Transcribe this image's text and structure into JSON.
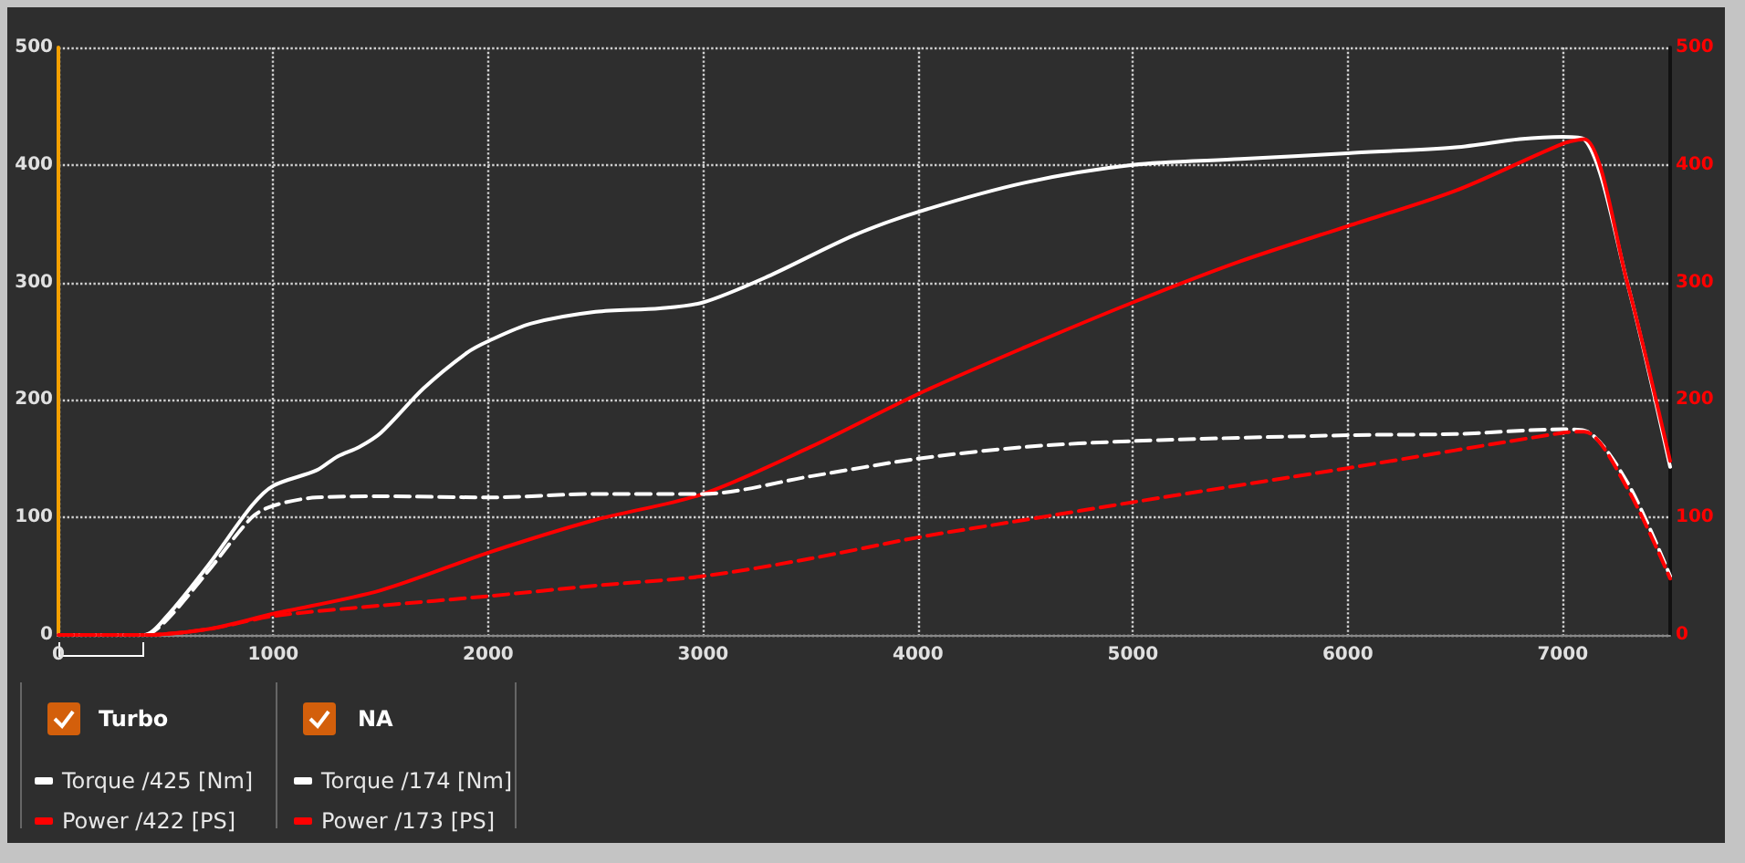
{
  "chart_data": {
    "type": "line",
    "xlim": [
      0,
      7500
    ],
    "xticks": [
      0,
      1000,
      2000,
      3000,
      4000,
      5000,
      6000,
      7000
    ],
    "ylim": [
      0,
      500
    ],
    "yticks": [
      0,
      100,
      200,
      300,
      400,
      500
    ],
    "y2lim": [
      0,
      500
    ],
    "y2ticks": [
      0,
      100,
      200,
      300,
      400,
      500
    ],
    "grid": true,
    "legend": "bottom left",
    "marker": "none",
    "annotations": [
      "Turbo",
      "NA"
    ],
    "series": [
      {
        "name": "Torque /425 [Nm]",
        "color": "#ffffff",
        "line_style": "solid",
        "x": [
          0,
          400,
          500,
          700,
          900,
          1000,
          1200,
          1300,
          1400,
          1500,
          1700,
          1900,
          2000,
          2200,
          2500,
          2800,
          3000,
          3300,
          3700,
          4000,
          4500,
          5000,
          5500,
          6000,
          6500,
          6800,
          7000,
          7100,
          7300,
          7500
        ],
        "values": [
          0,
          0,
          15,
          60,
          110,
          127,
          140,
          152,
          160,
          172,
          210,
          240,
          250,
          265,
          275,
          278,
          283,
          305,
          340,
          360,
          385,
          400,
          405,
          410,
          415,
          422,
          424,
          422,
          300,
          143
        ]
      },
      {
        "name": "Power /422 [PS]",
        "color": "#ff0000",
        "line_style": "solid",
        "axis": "y2",
        "x": [
          0,
          400,
          700,
          1000,
          1500,
          2000,
          2500,
          3000,
          3500,
          4000,
          4500,
          5000,
          5500,
          6000,
          6500,
          7000,
          7100,
          7300,
          7500
        ],
        "values": [
          0,
          0,
          5,
          18,
          38,
          70,
          98,
          120,
          160,
          205,
          245,
          283,
          318,
          348,
          378,
          418,
          422,
          300,
          148
        ]
      },
      {
        "name": "Torque /174 [Nm]",
        "color": "#ffffff",
        "line_style": "dashed",
        "x": [
          0,
          400,
          500,
          700,
          900,
          1000,
          1200,
          1500,
          2000,
          2500,
          3000,
          3500,
          4000,
          4500,
          5000,
          6000,
          6500,
          7000,
          7100,
          7300,
          7500
        ],
        "values": [
          0,
          0,
          12,
          55,
          100,
          110,
          117,
          118,
          117,
          120,
          120,
          135,
          150,
          160,
          165,
          170,
          171,
          175,
          174,
          130,
          50
        ]
      },
      {
        "name": "Power /173 [PS]",
        "color": "#ff0000",
        "line_style": "dashed",
        "axis": "y2",
        "x": [
          0,
          400,
          700,
          1000,
          1500,
          2000,
          2500,
          3000,
          3500,
          4000,
          4500,
          5000,
          6000,
          7000,
          7100,
          7300,
          7500
        ],
        "values": [
          0,
          0,
          5,
          16,
          25,
          33,
          42,
          50,
          65,
          83,
          98,
          113,
          142,
          172,
          173,
          125,
          48
        ]
      }
    ]
  }
}
